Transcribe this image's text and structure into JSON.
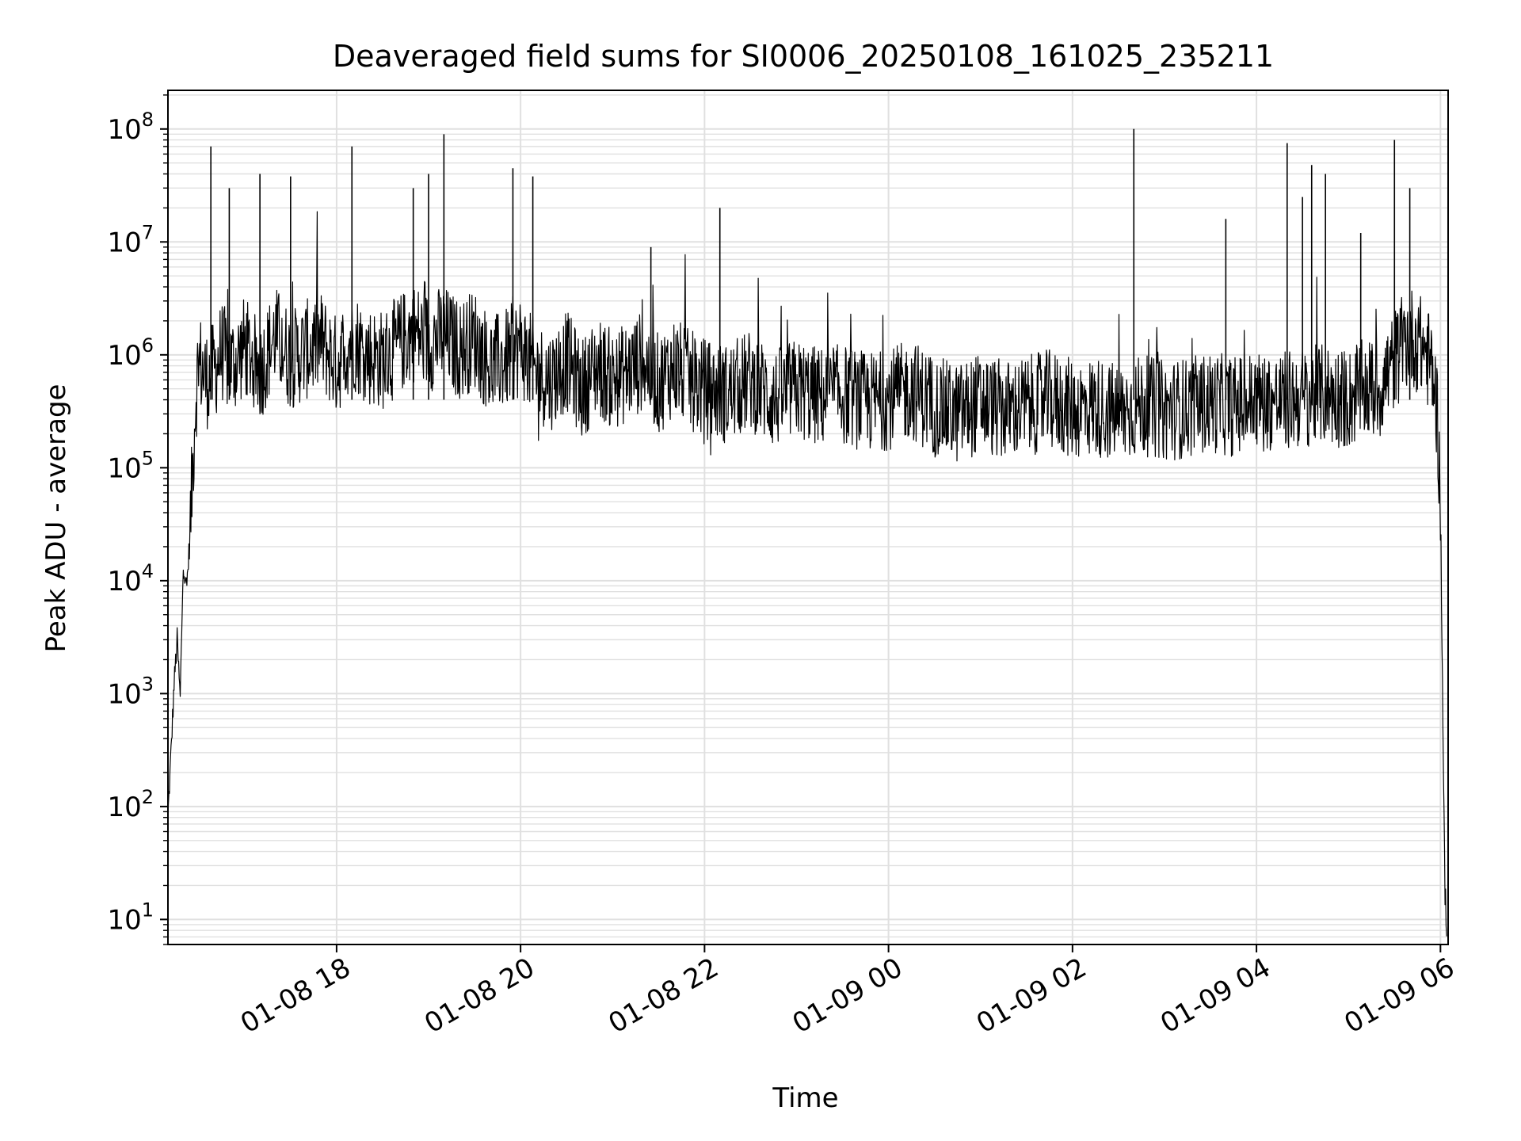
{
  "chart_data": {
    "type": "line",
    "title": "Deaveraged field sums for SI0006_20250108_161025_235211",
    "xlabel": "Time",
    "ylabel": "Peak ADU - average",
    "yscale": "log",
    "xlim": [
      "2025-01-08 16:10",
      "2025-01-09 06:05"
    ],
    "ylim": [
      6,
      220000000.0
    ],
    "grid": true,
    "line_color": "#000000",
    "grid_color": "#e0e0e0",
    "x_ticks": [
      {
        "t": "2025-01-08 18:00",
        "label": "01-08 18"
      },
      {
        "t": "2025-01-08 20:00",
        "label": "01-08 20"
      },
      {
        "t": "2025-01-08 22:00",
        "label": "01-08 22"
      },
      {
        "t": "2025-01-09 00:00",
        "label": "01-09 00"
      },
      {
        "t": "2025-01-09 02:00",
        "label": "01-09 02"
      },
      {
        "t": "2025-01-09 04:00",
        "label": "01-09 04"
      },
      {
        "t": "2025-01-09 06:00",
        "label": "01-09 06"
      }
    ],
    "y_ticks": [
      {
        "v": 10,
        "base": "10",
        "exp": "1"
      },
      {
        "v": 100,
        "base": "10",
        "exp": "2"
      },
      {
        "v": 1000,
        "base": "10",
        "exp": "3"
      },
      {
        "v": 10000,
        "base": "10",
        "exp": "4"
      },
      {
        "v": 100000,
        "base": "10",
        "exp": "5"
      },
      {
        "v": 1000000,
        "base": "10",
        "exp": "6"
      },
      {
        "v": 10000000,
        "base": "10",
        "exp": "7"
      },
      {
        "v": 100000000,
        "base": "10",
        "exp": "8"
      }
    ],
    "series": [
      {
        "x": [
          "2025-01-08 16:10",
          "2025-01-08 16:12",
          "2025-01-08 16:14",
          "2025-01-08 16:16",
          "2025-01-08 16:18",
          "2025-01-08 16:20",
          "2025-01-08 16:22",
          "2025-01-08 16:24",
          "2025-01-08 16:26",
          "2025-01-08 16:28",
          "2025-01-08 16:30",
          "2025-01-08 16:35",
          "2025-01-08 16:40",
          "2025-01-08 16:45",
          "2025-01-08 16:50",
          "2025-01-08 16:55",
          "2025-01-08 17:00",
          "2025-01-08 17:10",
          "2025-01-08 17:20",
          "2025-01-08 17:30",
          "2025-01-08 17:40",
          "2025-01-08 17:50",
          "2025-01-08 18:00",
          "2025-01-08 18:10",
          "2025-01-08 18:20",
          "2025-01-08 18:30",
          "2025-01-08 18:40",
          "2025-01-08 18:50",
          "2025-01-08 19:00",
          "2025-01-08 19:10",
          "2025-01-08 19:20",
          "2025-01-08 19:30",
          "2025-01-08 19:40",
          "2025-01-08 19:50",
          "2025-01-08 20:00",
          "2025-01-08 20:10",
          "2025-01-08 20:20",
          "2025-01-08 20:30",
          "2025-01-08 20:40",
          "2025-01-08 20:50",
          "2025-01-08 21:00",
          "2025-01-08 21:10",
          "2025-01-08 21:20",
          "2025-01-08 21:30",
          "2025-01-08 21:40",
          "2025-01-08 21:50",
          "2025-01-08 22:00",
          "2025-01-08 22:15",
          "2025-01-08 22:30",
          "2025-01-08 22:45",
          "2025-01-08 23:00",
          "2025-01-08 23:15",
          "2025-01-08 23:30",
          "2025-01-08 23:45",
          "2025-01-09 00:00",
          "2025-01-09 00:15",
          "2025-01-09 00:30",
          "2025-01-09 00:45",
          "2025-01-09 01:00",
          "2025-01-09 01:15",
          "2025-01-09 01:30",
          "2025-01-09 01:45",
          "2025-01-09 02:00",
          "2025-01-09 02:15",
          "2025-01-09 02:30",
          "2025-01-09 02:45",
          "2025-01-09 03:00",
          "2025-01-09 03:15",
          "2025-01-09 03:30",
          "2025-01-09 03:45",
          "2025-01-09 04:00",
          "2025-01-09 04:15",
          "2025-01-09 04:30",
          "2025-01-09 04:45",
          "2025-01-09 05:00",
          "2025-01-09 05:10",
          "2025-01-09 05:20",
          "2025-01-09 05:30",
          "2025-01-09 05:40",
          "2025-01-09 05:50",
          "2025-01-09 05:55",
          "2025-01-09 05:58",
          "2025-01-09 06:00",
          "2025-01-09 06:01",
          "2025-01-09 06:02",
          "2025-01-09 06:03",
          "2025-01-09 06:04"
        ],
        "y": [
          80,
          300,
          1200,
          3000,
          900,
          15000,
          8000,
          20000,
          90000,
          400000,
          900000,
          600000,
          700000,
          1100000,
          800000,
          900000,
          1200000,
          700000,
          1500000,
          900000,
          1100000,
          1300000,
          800000,
          1400000,
          1000000,
          900000,
          1200000,
          1600000,
          1300000,
          1500000,
          1100000,
          1400000,
          800000,
          900000,
          1200000,
          700000,
          600000,
          900000,
          500000,
          800000,
          600000,
          700000,
          900000,
          550000,
          800000,
          600000,
          500000,
          450000,
          600000,
          400000,
          500000,
          420000,
          450000,
          380000,
          400000,
          500000,
          350000,
          300000,
          380000,
          320000,
          350000,
          400000,
          330000,
          350000,
          300000,
          360000,
          320000,
          340000,
          380000,
          350000,
          400000,
          380000,
          420000,
          450000,
          400000,
          500000,
          480000,
          900000,
          1500000,
          1100000,
          700000,
          300000,
          50000,
          3000,
          200,
          15,
          8
        ]
      }
    ],
    "spikes": [
      {
        "t": "2025-01-08 16:38",
        "y": 70000000
      },
      {
        "t": "2025-01-08 16:50",
        "y": 30000000
      },
      {
        "t": "2025-01-08 17:10",
        "y": 40000000
      },
      {
        "t": "2025-01-08 17:30",
        "y": 38000000
      },
      {
        "t": "2025-01-08 18:10",
        "y": 70000000
      },
      {
        "t": "2025-01-08 18:50",
        "y": 30000000
      },
      {
        "t": "2025-01-08 19:00",
        "y": 40000000
      },
      {
        "t": "2025-01-08 19:10",
        "y": 90000000
      },
      {
        "t": "2025-01-08 19:55",
        "y": 45000000
      },
      {
        "t": "2025-01-08 20:08",
        "y": 38000000
      },
      {
        "t": "2025-01-08 21:25",
        "y": 9000000
      },
      {
        "t": "2025-01-08 22:10",
        "y": 20000000
      },
      {
        "t": "2025-01-09 02:40",
        "y": 100000000
      },
      {
        "t": "2025-01-09 03:40",
        "y": 16000000
      },
      {
        "t": "2025-01-09 04:20",
        "y": 75000000
      },
      {
        "t": "2025-01-09 04:30",
        "y": 25000000
      },
      {
        "t": "2025-01-09 04:36",
        "y": 48000000
      },
      {
        "t": "2025-01-09 04:45",
        "y": 40000000
      },
      {
        "t": "2025-01-09 05:08",
        "y": 12000000
      },
      {
        "t": "2025-01-09 05:30",
        "y": 80000000
      },
      {
        "t": "2025-01-09 05:40",
        "y": 30000000
      }
    ]
  }
}
